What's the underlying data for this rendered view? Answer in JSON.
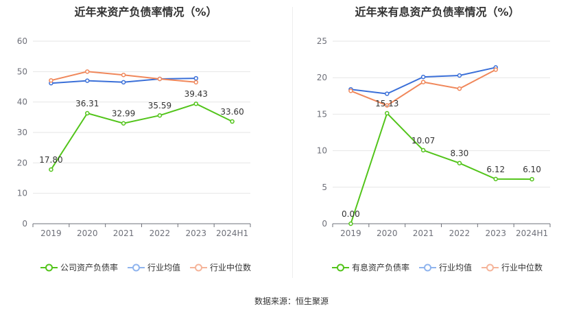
{
  "chart_data": [
    {
      "type": "line",
      "title": "近年来资产负债率情况（%）",
      "categories": [
        "2019",
        "2020",
        "2021",
        "2022",
        "2023",
        "2024H1"
      ],
      "ylim": [
        0,
        60
      ],
      "yticks": [
        0,
        10,
        20,
        30,
        40,
        50,
        60
      ],
      "grid": true,
      "legend_position": "bottom",
      "series": [
        {
          "name": "公司资产负债率",
          "color": "#52c41a",
          "values": [
            17.8,
            36.31,
            32.99,
            35.59,
            39.43,
            33.6
          ],
          "labels": [
            "17.80",
            "36.31",
            "32.99",
            "35.59",
            "39.43",
            "33.60"
          ]
        },
        {
          "name": "行业均值",
          "color": "#3a6fd8",
          "values": [
            46.2,
            47.0,
            46.5,
            47.6,
            47.8,
            null
          ]
        },
        {
          "name": "行业中位数",
          "color": "#f0875a",
          "values": [
            47.1,
            50.0,
            48.9,
            47.6,
            46.5,
            null
          ]
        }
      ]
    },
    {
      "type": "line",
      "title": "近年来有息资产负债率情况（%）",
      "categories": [
        "2019",
        "2020",
        "2021",
        "2022",
        "2023",
        "2024H1"
      ],
      "ylim": [
        0,
        25
      ],
      "yticks": [
        0,
        5,
        10,
        15,
        20,
        25
      ],
      "grid": true,
      "legend_position": "bottom",
      "series": [
        {
          "name": "有息资产负债率",
          "color": "#52c41a",
          "values": [
            0.0,
            15.13,
            10.07,
            8.3,
            6.12,
            6.1
          ],
          "labels": [
            "0.00",
            "15.13",
            "10.07",
            "8.30",
            "6.12",
            "6.10"
          ]
        },
        {
          "name": "行业均值",
          "color": "#3a6fd8",
          "values": [
            18.4,
            17.8,
            20.1,
            20.3,
            21.4,
            null
          ]
        },
        {
          "name": "行业中位数",
          "color": "#f0875a",
          "values": [
            18.2,
            16.2,
            19.4,
            18.5,
            21.1,
            null
          ]
        }
      ]
    }
  ],
  "footer": {
    "source": "数据来源：恒生聚源"
  }
}
